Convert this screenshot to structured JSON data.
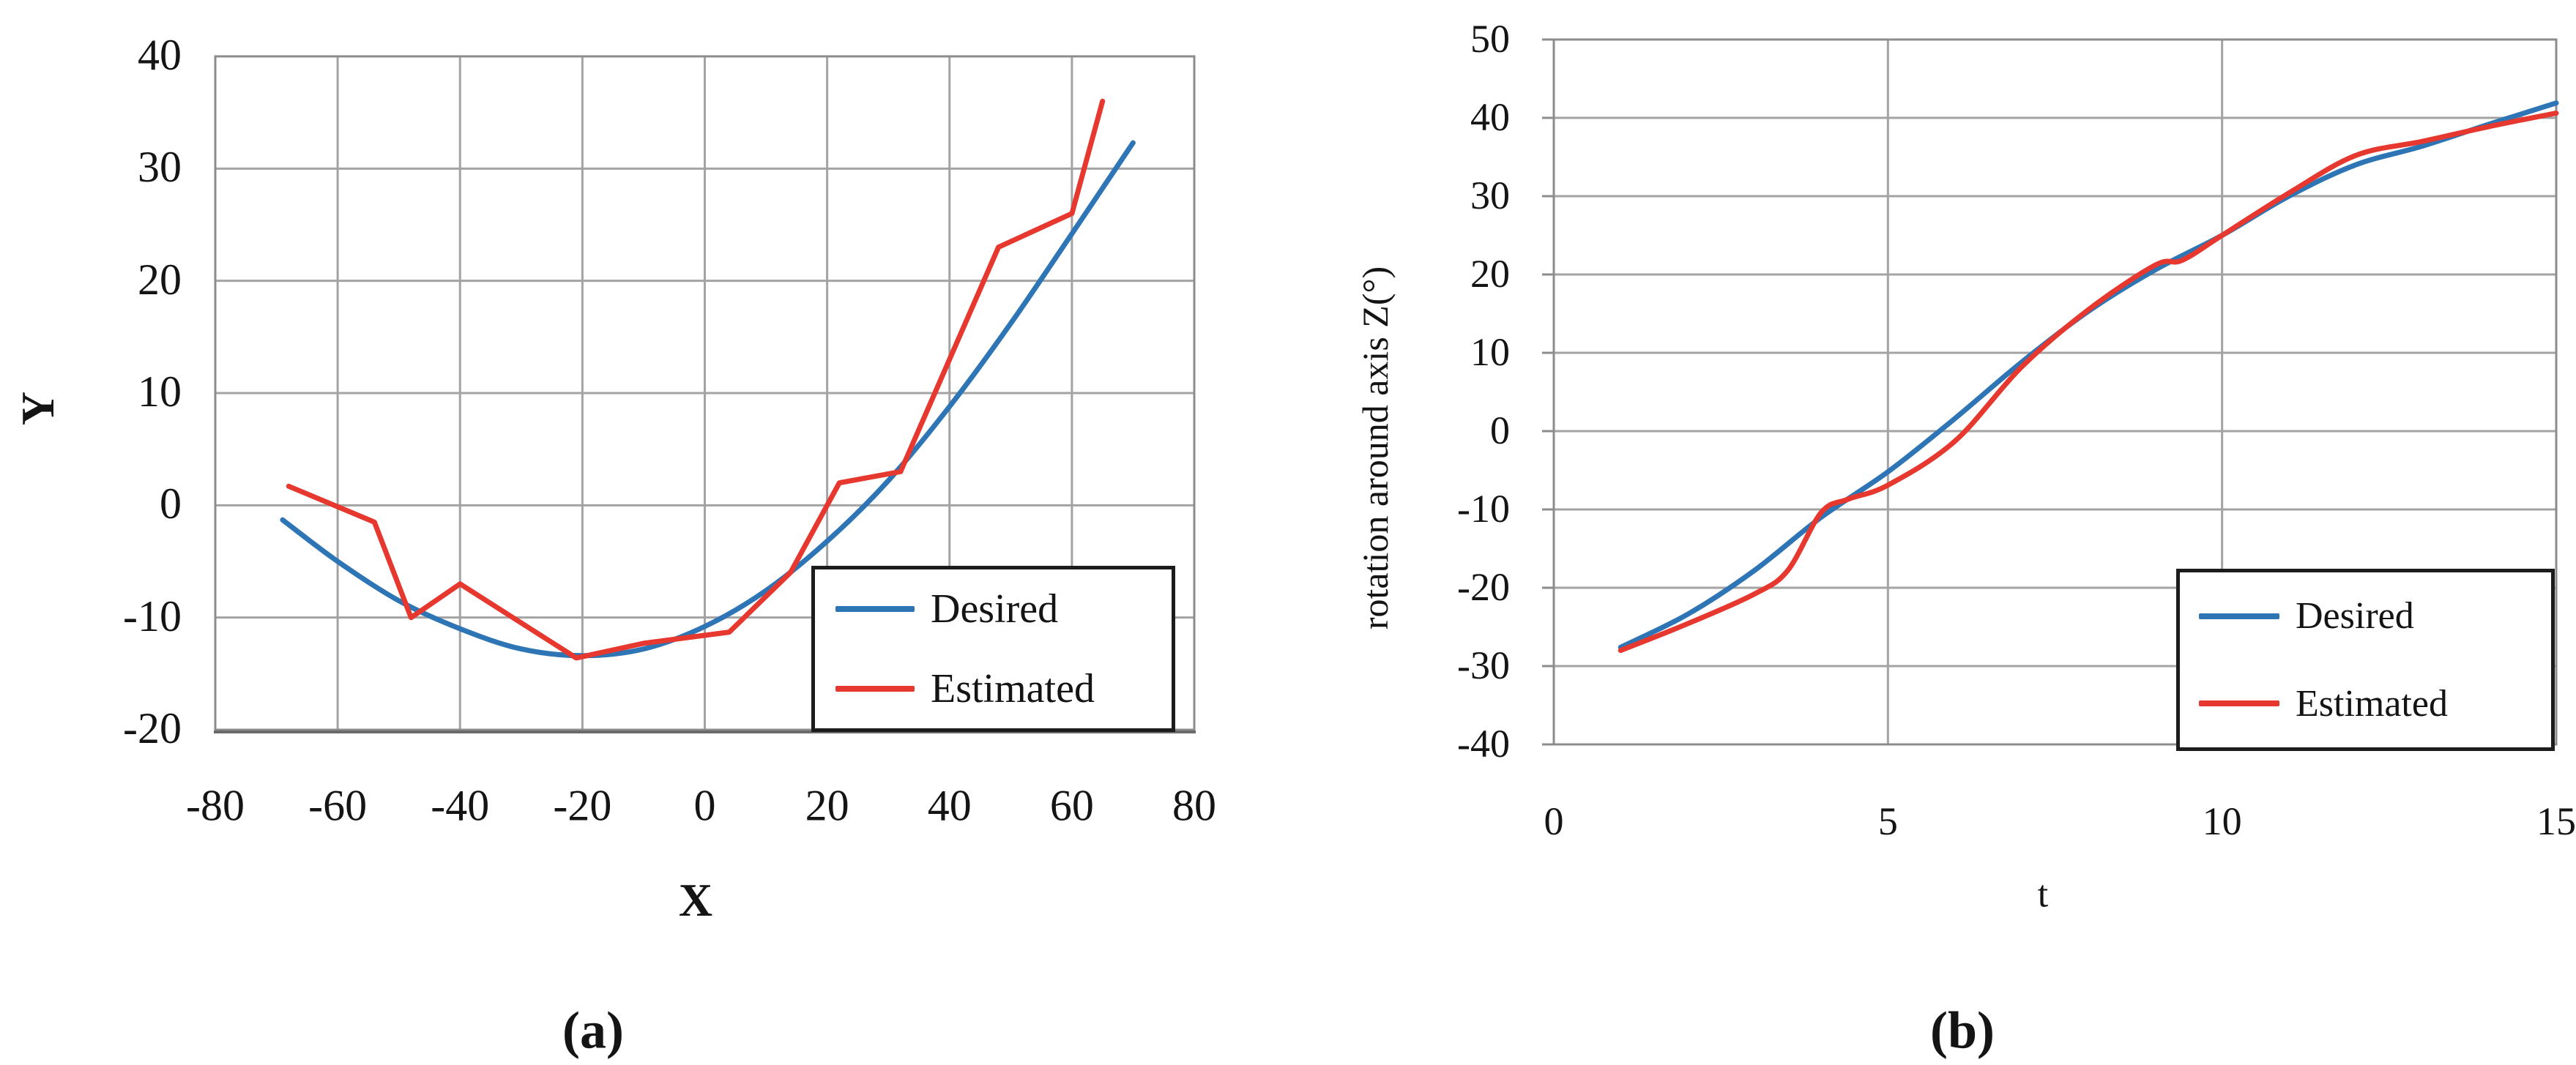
{
  "figure": {
    "background": "#ffffff",
    "panel_count": 2,
    "series_colors": {
      "desired": "#2e75b6",
      "estimated": "#e6382e"
    },
    "grid_color": "#a3a3a3",
    "border_color": "#8c8c8c",
    "text_color": "#141414"
  },
  "chart_data": [
    {
      "id": "a",
      "type": "line",
      "caption": "(a)",
      "xlabel": "X",
      "ylabel": "Y",
      "xlim": [
        -80,
        80
      ],
      "ylim": [
        -20,
        40
      ],
      "xticks": [
        -80,
        -60,
        -40,
        -20,
        0,
        20,
        40,
        60,
        80
      ],
      "yticks": [
        40,
        30,
        20,
        10,
        0,
        -10,
        -20
      ],
      "grid": true,
      "legend_position": "inside-bottom-right",
      "legend_entries": [
        "Desired",
        "Estimated"
      ],
      "series": [
        {
          "name": "Desired",
          "color": "#2e75b6",
          "smooth": true,
          "points": [
            [
              -69,
              -1.3
            ],
            [
              -60,
              -5.0
            ],
            [
              -50,
              -8.5
            ],
            [
              -40,
              -11.0
            ],
            [
              -30,
              -12.8
            ],
            [
              -20,
              -13.4
            ],
            [
              -10,
              -12.8
            ],
            [
              0,
              -10.8
            ],
            [
              10,
              -7.6
            ],
            [
              20,
              -3.2
            ],
            [
              30,
              2.2
            ],
            [
              40,
              8.8
            ],
            [
              50,
              16.2
            ],
            [
              60,
              24.2
            ],
            [
              70,
              32.3
            ]
          ]
        },
        {
          "name": "Estimated",
          "color": "#e6382e",
          "smooth": false,
          "points": [
            [
              -68,
              1.7
            ],
            [
              -54,
              -1.5
            ],
            [
              -48,
              -10.0
            ],
            [
              -40,
              -7.0
            ],
            [
              -21,
              -13.6
            ],
            [
              -10,
              -12.3
            ],
            [
              4,
              -11.3
            ],
            [
              14,
              -6.0
            ],
            [
              22,
              2.0
            ],
            [
              32,
              3.0
            ],
            [
              48,
              23.0
            ],
            [
              60,
              26.0
            ],
            [
              65,
              36.0
            ]
          ]
        }
      ]
    },
    {
      "id": "b",
      "type": "line",
      "caption": "(b)",
      "xlabel": "t",
      "ylabel": "rotation around axis Z(°)",
      "xlim": [
        0,
        15
      ],
      "ylim": [
        -40,
        50
      ],
      "xticks": [
        0,
        5,
        10,
        15
      ],
      "yticks": [
        50,
        40,
        30,
        20,
        10,
        0,
        -10,
        -20,
        -30,
        -40
      ],
      "grid": true,
      "legend_position": "inside-bottom-right",
      "legend_entries": [
        "Desired",
        "Estimated"
      ],
      "series": [
        {
          "name": "Desired",
          "color": "#2e75b6",
          "smooth": true,
          "points": [
            [
              1,
              -27.6
            ],
            [
              2,
              -23.4
            ],
            [
              3,
              -17.8
            ],
            [
              4,
              -11.0
            ],
            [
              5,
              -5.2
            ],
            [
              6,
              1.6
            ],
            [
              7,
              8.8
            ],
            [
              8,
              15.3
            ],
            [
              9,
              20.6
            ],
            [
              10,
              25.0
            ],
            [
              11,
              30.0
            ],
            [
              12,
              34.0
            ],
            [
              13,
              36.4
            ],
            [
              14,
              39.2
            ],
            [
              15,
              41.9
            ]
          ]
        },
        {
          "name": "Estimated",
          "color": "#e6382e",
          "smooth": true,
          "points": [
            [
              1,
              -28.0
            ],
            [
              2,
              -24.6
            ],
            [
              3,
              -20.8
            ],
            [
              3.5,
              -17.8
            ],
            [
              4,
              -10.4
            ],
            [
              4.4,
              -8.7
            ],
            [
              5,
              -6.9
            ],
            [
              6,
              -1.3
            ],
            [
              7,
              8.2
            ],
            [
              8,
              15.5
            ],
            [
              9,
              21.2
            ],
            [
              9.4,
              21.8
            ],
            [
              10,
              25.0
            ],
            [
              11,
              30.4
            ],
            [
              12,
              35.2
            ],
            [
              13,
              37.0
            ],
            [
              14,
              38.9
            ],
            [
              15,
              40.6
            ]
          ]
        }
      ]
    }
  ]
}
